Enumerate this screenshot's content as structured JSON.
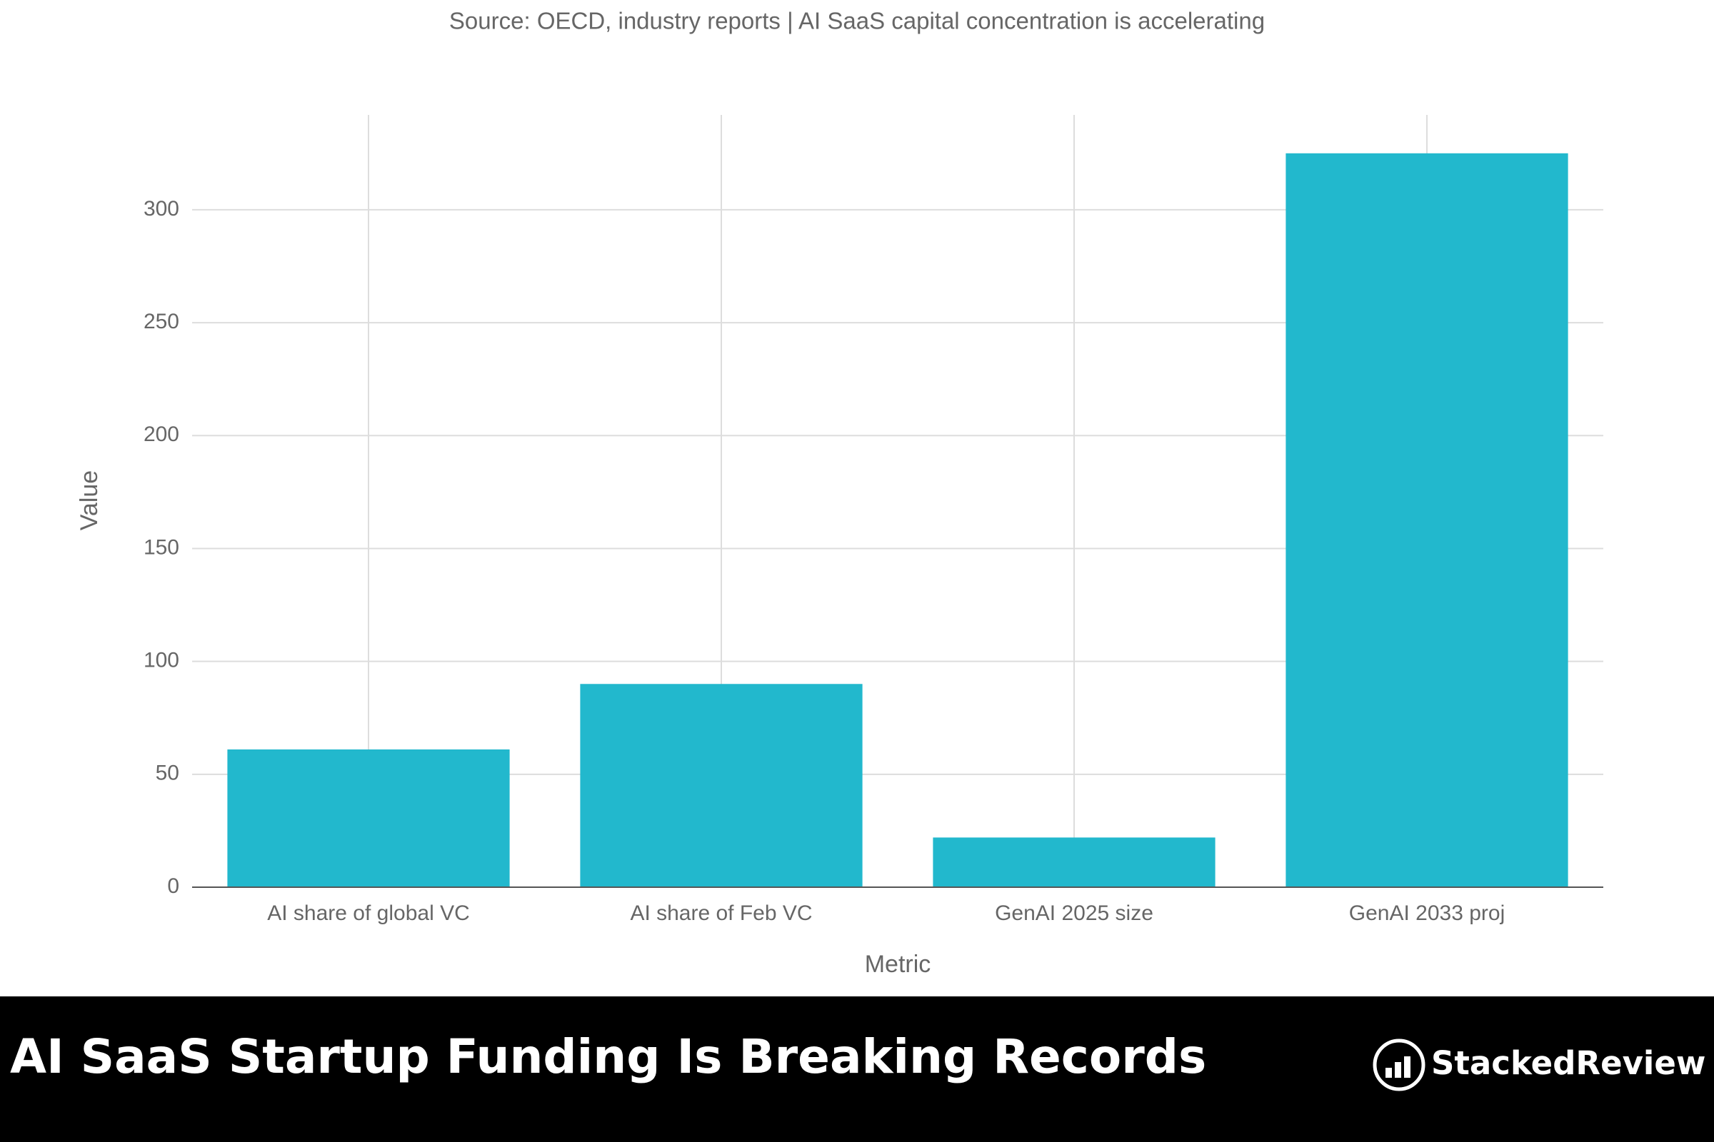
{
  "chart_data": {
    "type": "bar",
    "title": "AI SaaS Startup Funding Is Breaking Records",
    "subtitle": "Source: OECD, industry reports | AI SaaS capital concentration is accelerating",
    "x_label": "Metric",
    "y_label": "Value",
    "categories": [
      "AI share of global VC",
      "AI share of Feb VC",
      "GenAI 2025 size",
      "GenAI 2033 proj"
    ],
    "values": [
      61,
      90,
      22,
      325
    ],
    "color": "#22b8cd",
    "ylim": [
      0,
      342
    ],
    "yticks": [
      0,
      50,
      100,
      150,
      200,
      250,
      300
    ],
    "grid": true
  },
  "brand": "StackedReview"
}
